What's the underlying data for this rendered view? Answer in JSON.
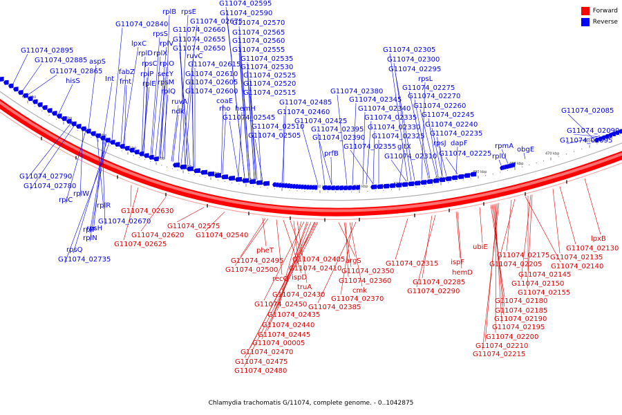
{
  "title": "Chlamydia trachomatis G/11074, complete genome. - 0..1042875",
  "legend": [
    {
      "label": "Forward",
      "color": "#ff0000"
    },
    {
      "label": "Reverse",
      "color": "#0000ff"
    }
  ],
  "colors": {
    "forward": "#e00000",
    "reverse": "#0000ee",
    "ring": "#ff0000"
  },
  "ticks_kbp": [
    "620 kbp",
    "610 kbp",
    "600 kbp",
    "590 kbp",
    "580 kbp",
    "570 kbp",
    "560 kbp",
    "550 kbp",
    "540 kbp",
    "530 kbp",
    "520 kbp",
    "510 kbp",
    "500 kbp",
    "490 kbp",
    "480 kbp",
    "470 kbp",
    "460 kbp"
  ],
  "reverse_labels": [
    "G11074_02895",
    "G11074_02885",
    "G11074_02865",
    "aspS",
    "hisS",
    "G11074_02840",
    "lpxC",
    "Int",
    "fabZ",
    "fmt",
    "rplB",
    "rpsE",
    "G11074_02675",
    "G11074_02660",
    "G11074_02655",
    "G11074_02650",
    "rpsS",
    "rplV",
    "rplD",
    "rplX",
    "rpsC",
    "rplO",
    "rplP",
    "secY",
    "rplE",
    "rpsM",
    "rplQ",
    "ruvA",
    "ndk",
    "ruvC",
    "G11074_02615",
    "G11074_02610",
    "G11074_02605",
    "G11074_02600",
    "coaE",
    "rho",
    "hemH",
    "G11074_02545",
    "G11074_02595",
    "G11074_02590",
    "G11074_02570",
    "G11074_02565",
    "G11074_02560",
    "G11074_02555",
    "G11074_02535",
    "G11074_02530",
    "G11074_02525",
    "G11074_02520",
    "G11074_02515",
    "G11074_02510",
    "G11074_02505",
    "G11074_02485",
    "G11074_02460",
    "G11074_02425",
    "G11074_02395",
    "G11074_02390",
    "prfB",
    "G11074_02380",
    "G11074_02345",
    "G11074_02340",
    "G11074_02335",
    "G11074_02330",
    "G11074_02325",
    "G11074_02355",
    "gltX",
    "G11074_02310",
    "G11074_02305",
    "G11074_02300",
    "G11074_02295",
    "rpsL",
    "G11074_02275",
    "G11074_02270",
    "G11074_02260",
    "G11074_02245",
    "G11074_02240",
    "G11074_02235",
    "rpsJ",
    "dapF",
    "G11074_02225",
    "rpmA",
    "rplU",
    "obgE",
    "G11074_02085",
    "G11074_02090",
    "G11074_02095",
    "G11074_02790",
    "G11074_02780",
    "rplW",
    "rplC",
    "rplR",
    "G11074_02670",
    "rplF",
    "rpsH",
    "rplN",
    "rpsQ",
    "G11074_02735"
  ],
  "forward_labels": [
    "G11074_02630",
    "G11074_02575",
    "G11074_02620",
    "G11074_02540",
    "G11074_02625",
    "pheT",
    "G11074_02495",
    "G11074_02500",
    "recO",
    "ispD",
    "G11074_02405",
    "G11074_02410",
    "truA",
    "G11074_02430",
    "G11074_02450",
    "G11074_02435",
    "G11074_02440",
    "G11074_02445",
    "G11074_00005",
    "G11074_02470",
    "G11074_02475",
    "G11074_02480",
    "argS",
    "G11074_02350",
    "G11074_02360",
    "cmk",
    "G11074_02370",
    "G11074_02385",
    "G11074_02315",
    "ispF",
    "G11074_02285",
    "G11074_02290",
    "hemD",
    "ubiE",
    "G11074_02175",
    "G11074_02205",
    "G11074_02140",
    "G11074_02145",
    "G11074_02150",
    "G11074_02155",
    "G11074_02180",
    "G11074_02185",
    "G11074_02190",
    "G11074_02195",
    "G11074_02200",
    "G11074_02210",
    "G11074_02215",
    "G11074_02135",
    "G11074_02130",
    "lpxB"
  ]
}
